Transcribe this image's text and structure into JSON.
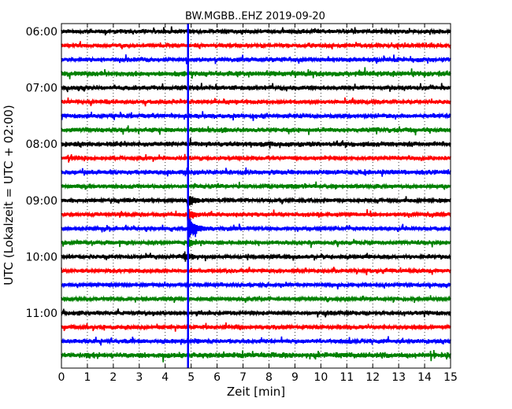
{
  "chart_data": {
    "type": "line",
    "title": "BW.MGBB..EHZ 2019-09-20",
    "xlabel": "Zeit  [min]",
    "ylabel": "UTC (Lokalzeit = UTC + 02:00)",
    "xlim": [
      0,
      15
    ],
    "x_ticks": [
      "0",
      "1",
      "2",
      "3",
      "4",
      "5",
      "6",
      "7",
      "8",
      "9",
      "10",
      "11",
      "12",
      "13",
      "14",
      "15"
    ],
    "y_ticks": [
      "06:00",
      "07:00",
      "08:00",
      "09:00",
      "10:00",
      "11:00"
    ],
    "grid": "vertical dotted",
    "trace_interval_min": 15,
    "trace_colors": [
      "#000000",
      "#ff0000",
      "#0000ff",
      "#008000"
    ],
    "event_marker": {
      "x": 4.88,
      "color": "#0000ff"
    },
    "series": [
      {
        "start": "06:00",
        "color": "#000000",
        "amplitude": 0.3
      },
      {
        "start": "06:15",
        "color": "#ff0000",
        "amplitude": 0.28
      },
      {
        "start": "06:30",
        "color": "#0000ff",
        "amplitude": 0.32
      },
      {
        "start": "06:45",
        "color": "#008000",
        "amplitude": 0.38
      },
      {
        "start": "07:00",
        "color": "#000000",
        "amplitude": 0.32
      },
      {
        "start": "07:15",
        "color": "#ff0000",
        "amplitude": 0.3
      },
      {
        "start": "07:30",
        "color": "#0000ff",
        "amplitude": 0.3
      },
      {
        "start": "07:45",
        "color": "#008000",
        "amplitude": 0.34
      },
      {
        "start": "08:00",
        "color": "#000000",
        "amplitude": 0.36
      },
      {
        "start": "08:15",
        "color": "#ff0000",
        "amplitude": 0.3
      },
      {
        "start": "08:30",
        "color": "#0000ff",
        "amplitude": 0.34
      },
      {
        "start": "08:45",
        "color": "#008000",
        "amplitude": 0.3
      },
      {
        "start": "09:00",
        "color": "#000000",
        "amplitude": 0.28,
        "event": {
          "x": 4.9,
          "amplitude": 0.9
        }
      },
      {
        "start": "09:15",
        "color": "#ff0000",
        "amplitude": 0.3,
        "event": {
          "x": 4.9,
          "amplitude": 0.8
        }
      },
      {
        "start": "09:30",
        "color": "#0000ff",
        "amplitude": 0.28,
        "event": {
          "x": 4.92,
          "amplitude": 2.2
        }
      },
      {
        "start": "09:45",
        "color": "#008000",
        "amplitude": 0.3,
        "event": {
          "x": 4.9,
          "amplitude": 0.7
        }
      },
      {
        "start": "10:00",
        "color": "#000000",
        "amplitude": 0.28,
        "event": {
          "x": 4.75,
          "amplitude": 0.8
        }
      },
      {
        "start": "10:15",
        "color": "#ff0000",
        "amplitude": 0.28
      },
      {
        "start": "10:30",
        "color": "#0000ff",
        "amplitude": 0.26
      },
      {
        "start": "10:45",
        "color": "#008000",
        "amplitude": 0.26
      },
      {
        "start": "11:00",
        "color": "#000000",
        "amplitude": 0.3
      },
      {
        "start": "11:15",
        "color": "#ff0000",
        "amplitude": 0.28
      },
      {
        "start": "11:30",
        "color": "#0000ff",
        "amplitude": 0.32
      },
      {
        "start": "11:45",
        "color": "#008000",
        "amplitude": 0.4
      }
    ]
  }
}
